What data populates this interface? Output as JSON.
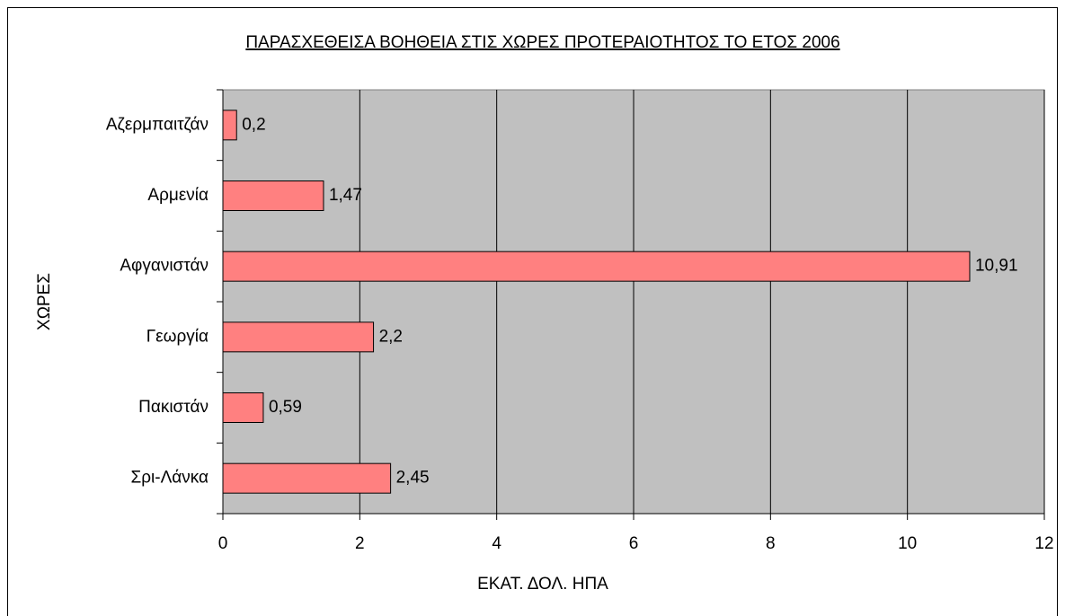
{
  "chart_data": {
    "type": "bar",
    "orientation": "horizontal",
    "title": "ΠΑΡΑΣΧΕΘΕΙΣΑ ΒΟΗΘΕΙΑ ΣΤΙΣ ΧΩΡΕΣ ΠΡΟΤΕΡΑΙΟΤΗΤΟΣ ΤΟ ΕΤΟΣ 2006",
    "x_label": "ΕΚΑΤ. ΔΟΛ. ΗΠΑ",
    "y_label": "ΧΩΡΕΣ",
    "categories": [
      "Αζερμπαιτζάν",
      "Αρμενία",
      "Αφγανιστάν",
      "Γεωργία",
      "Πακιστάν",
      "Σρι-Λάνκα"
    ],
    "values": [
      0.2,
      1.47,
      10.91,
      2.2,
      0.59,
      2.45
    ],
    "value_labels": [
      "0,2",
      "1,47",
      "10,91",
      "2,2",
      "0,59",
      "2,45"
    ],
    "color": "#ff8080",
    "plot_background": "#c0c0c0",
    "xlim": [
      0,
      12
    ],
    "xticks": [
      0,
      2,
      4,
      6,
      8,
      10,
      12
    ],
    "grid": true
  }
}
